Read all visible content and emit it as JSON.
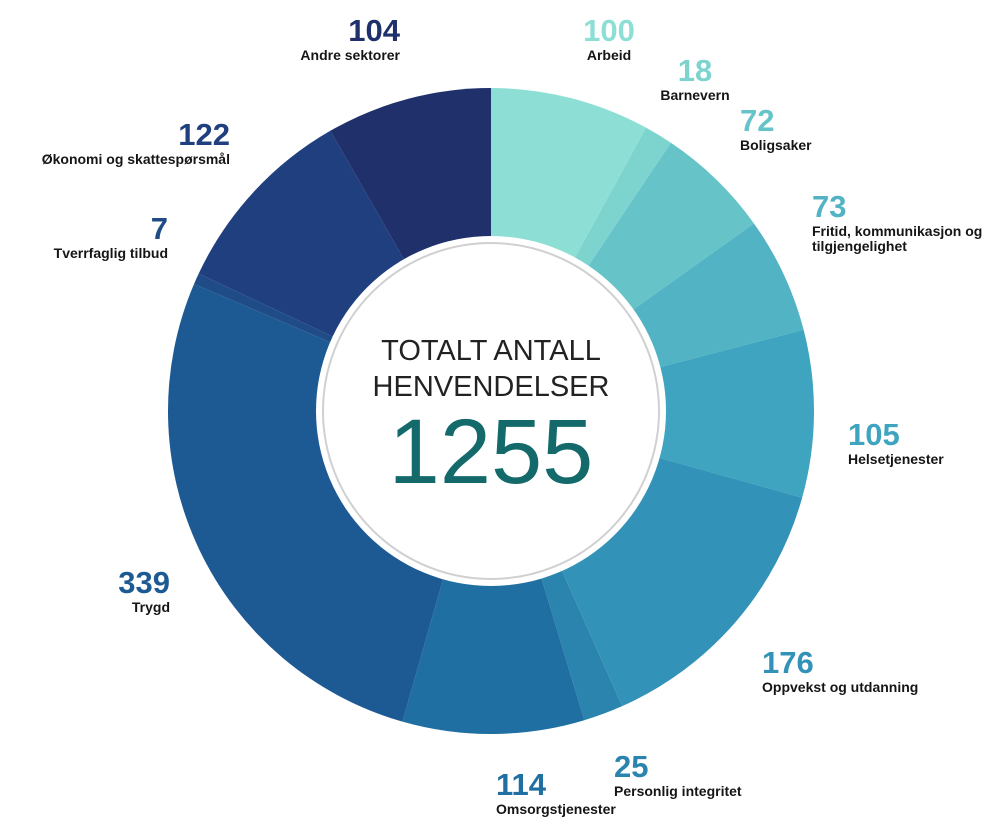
{
  "chart_data": {
    "type": "donut",
    "center_title": "TOTALT ANTALL HENVENDELSER",
    "total": 1255,
    "categories": [
      "Arbeid",
      "Barnevern",
      "Boligsaker",
      "Fritid, kommunikasjon og tilgjengelighet",
      "Helsetjenester",
      "Oppvekst og utdanning",
      "Personlig integritet",
      "Omsorgstjenester",
      "Trygd",
      "Tverrfaglig tilbud",
      "Økonomi og skattespørsmål",
      "Andre sektorer"
    ],
    "values": [
      100,
      18,
      72,
      73,
      105,
      176,
      25,
      114,
      339,
      7,
      122,
      104
    ],
    "colors": [
      "#8ddfd5",
      "#7dd4cf",
      "#66c4c9",
      "#52b3c4",
      "#3ea4bf",
      "#3292b8",
      "#2a84ae",
      "#1f6fa3",
      "#1d5a94",
      "#1f4c86",
      "#1f3f7e",
      "#20306a"
    ]
  }
}
